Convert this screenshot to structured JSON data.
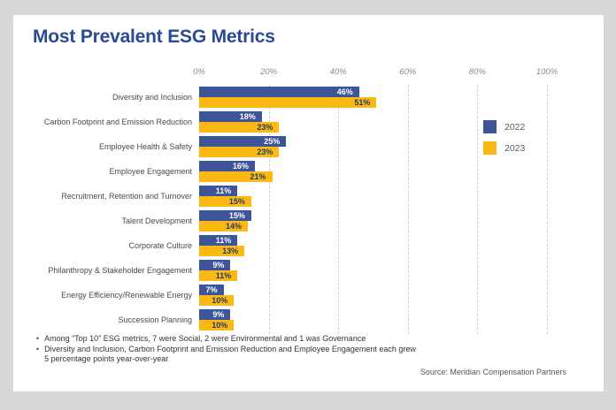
{
  "page": {
    "background_color": "#d8d8d8",
    "card_background_color": "#ffffff"
  },
  "header": {
    "title": "Most Prevalent ESG Metrics",
    "title_color": "#2b4a94"
  },
  "chart_data": {
    "type": "bar",
    "orientation": "horizontal",
    "title": "Most Prevalent ESG Metrics",
    "categories": [
      "Diversity and Inclusion",
      "Carbon Footprint and Emission Reduction",
      "Employee Health & Safety",
      "Employee Engagement",
      "Recruitment, Retention and Turnover",
      "Talent Development",
      "Corporate Culture",
      "Philanthropy & Stakeholder Engagement",
      "Energy Efficiency/Renewable Energy",
      "Succession Planning"
    ],
    "series": [
      {
        "name": "2022",
        "color": "#3d5499",
        "value_label_color": "#ffffff",
        "values": [
          46,
          18,
          25,
          16,
          11,
          15,
          11,
          9,
          7,
          9
        ]
      },
      {
        "name": "2023",
        "color": "#fdb913",
        "value_label_color": "#1e3a6e",
        "values": [
          51,
          23,
          23,
          21,
          15,
          14,
          13,
          11,
          10,
          10
        ]
      }
    ],
    "value_suffix": "%",
    "x_axis": {
      "min": 0,
      "max": 100,
      "tick_step": 20,
      "ticks": [
        "0%",
        "20%",
        "40%",
        "60%",
        "80%",
        "100%"
      ]
    },
    "grid": "vertical dashed",
    "gridline_color": "#d2d2d2",
    "legend_position": "right"
  },
  "legend": {
    "items": [
      {
        "label": "2022",
        "color": "#3d5499"
      },
      {
        "label": "2023",
        "color": "#fdb913"
      }
    ]
  },
  "footnotes": {
    "bullet": "•",
    "items": [
      "Among “Top 10” ESG metrics, 7 were Social, 2 were Environmental and 1 was Governance",
      "Diversity and Inclusion, Carbon Footprint and Emission Reduction and Employee Engagement each grew 5 percentage points year-over-year"
    ]
  },
  "source": "Source: Meridian Compensation Partners"
}
